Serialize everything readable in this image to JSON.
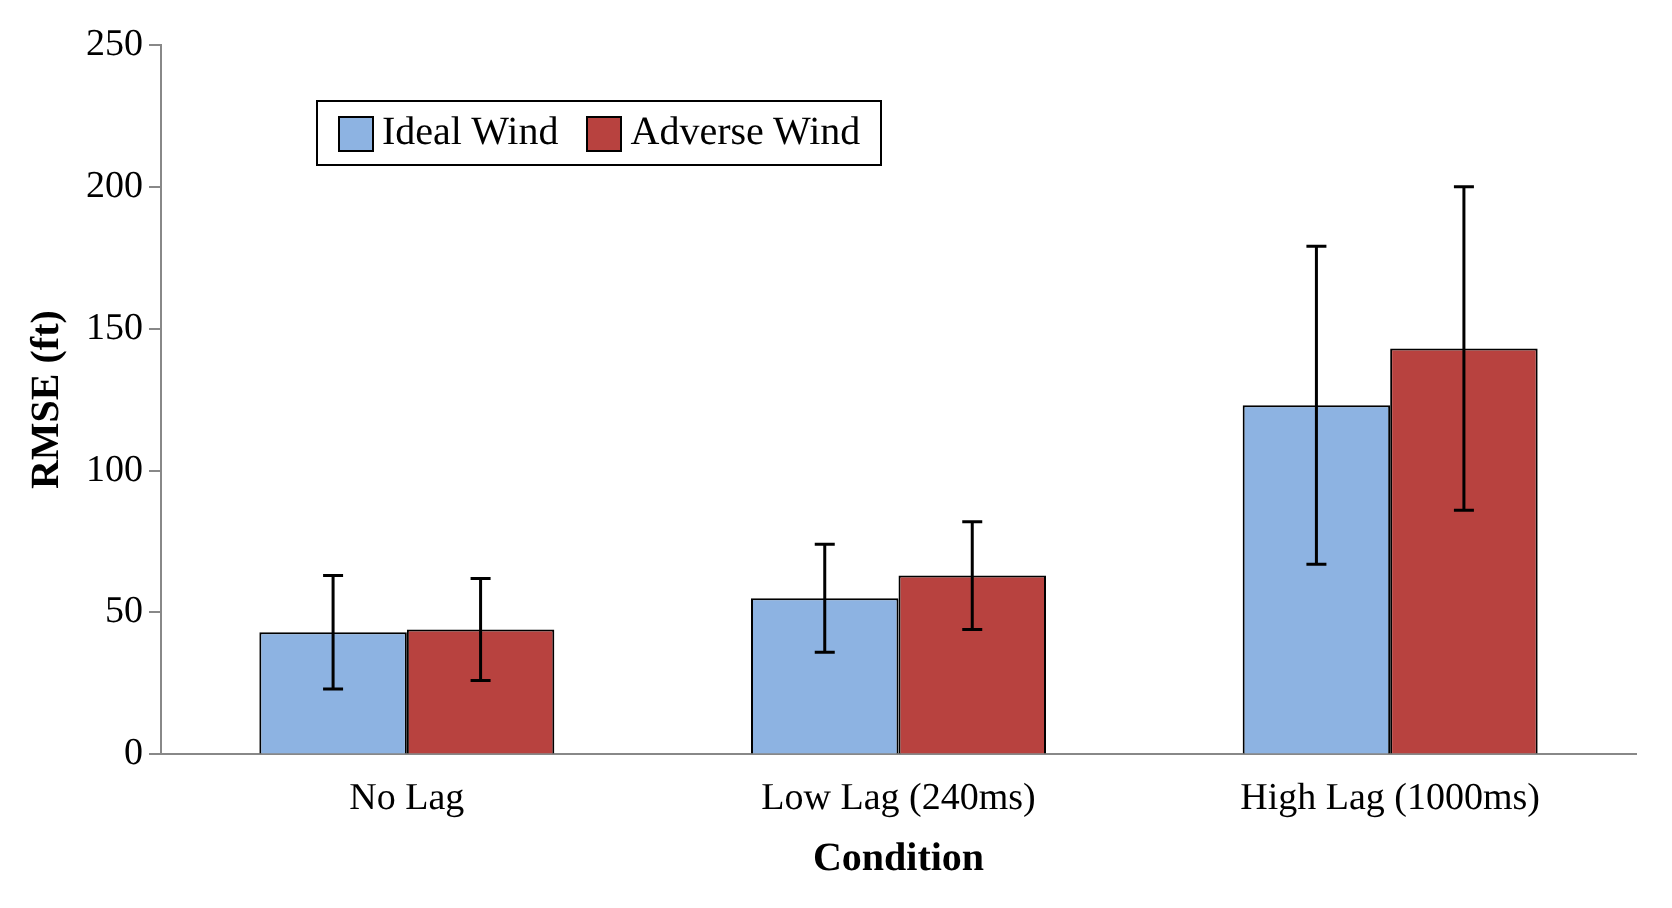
{
  "chart_data": {
    "type": "bar",
    "xlabel": "Condition",
    "ylabel": "RMSE (ft)",
    "categories": [
      "No Lag",
      "Low Lag (240ms)",
      "High Lag (1000ms)"
    ],
    "series": [
      {
        "name": "Ideal Wind",
        "color": "#8db3e2",
        "values": [
          43,
          55,
          123
        ],
        "errors": [
          20,
          19,
          56
        ]
      },
      {
        "name": "Adverse Wind",
        "color": "#b8423f",
        "values": [
          44,
          63,
          143
        ],
        "errors": [
          18,
          19,
          57
        ]
      }
    ],
    "ylim": [
      0,
      250
    ],
    "yticks": [
      0,
      50,
      100,
      150,
      200,
      250
    ],
    "grid": false,
    "legend": "top left"
  }
}
